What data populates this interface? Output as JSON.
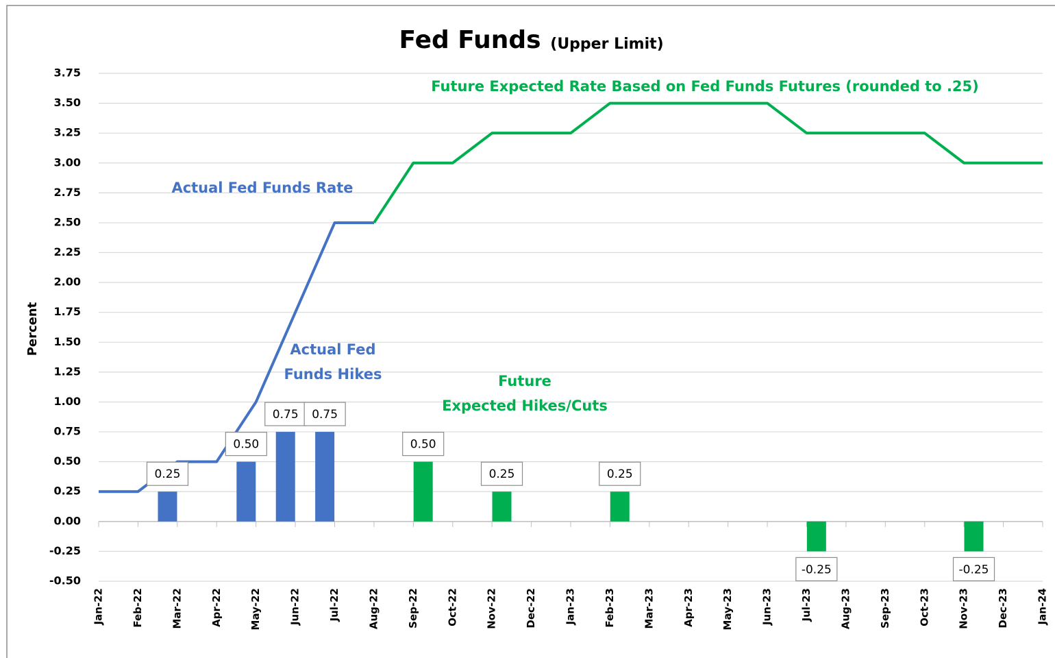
{
  "chart_data": {
    "type": "bar-line",
    "title": "Fed Funds",
    "subtitle": "(Upper Limit)",
    "y_label": "Percent",
    "xlim": [
      0,
      24
    ],
    "xticks": [
      {
        "value": 0,
        "label": "Jan-22"
      },
      {
        "value": 1,
        "label": "Feb-22"
      },
      {
        "value": 2,
        "label": "Mar-22"
      },
      {
        "value": 3,
        "label": "Apr-22"
      },
      {
        "value": 4,
        "label": "May-22"
      },
      {
        "value": 5,
        "label": "Jun-22"
      },
      {
        "value": 6,
        "label": "Jul-22"
      },
      {
        "value": 7,
        "label": "Aug-22"
      },
      {
        "value": 8,
        "label": "Sep-22"
      },
      {
        "value": 9,
        "label": "Oct-22"
      },
      {
        "value": 10,
        "label": "Nov-22"
      },
      {
        "value": 11,
        "label": "Dec-22"
      },
      {
        "value": 12,
        "label": "Jan-23"
      },
      {
        "value": 13,
        "label": "Feb-23"
      },
      {
        "value": 14,
        "label": "Mar-23"
      },
      {
        "value": 15,
        "label": "Apr-23"
      },
      {
        "value": 16,
        "label": "May-23"
      },
      {
        "value": 17,
        "label": "Jun-23"
      },
      {
        "value": 18,
        "label": "Jul-23"
      },
      {
        "value": 19,
        "label": "Aug-23"
      },
      {
        "value": 20,
        "label": "Sep-23"
      },
      {
        "value": 21,
        "label": "Oct-23"
      },
      {
        "value": 22,
        "label": "Nov-23"
      },
      {
        "value": 23,
        "label": "Dec-23"
      },
      {
        "value": 24,
        "label": "Jan-24"
      }
    ],
    "ylim": [
      -0.5,
      3.75
    ],
    "yticks": [
      3.75,
      {
        "value": 3.5,
        "label": "3.50"
      },
      3.25,
      {
        "value": 3,
        "label": "3.00"
      },
      2.75,
      {
        "value": 2.5,
        "label": "2.50"
      },
      2.25,
      {
        "value": 2,
        "label": "2.00"
      },
      1.75,
      {
        "value": 1.5,
        "label": "1.50"
      },
      1.25,
      {
        "value": 1,
        "label": "1.00"
      },
      0.75,
      {
        "value": 0.5,
        "label": "0.50"
      },
      0.25,
      {
        "value": 0,
        "label": "0.00"
      },
      -0.25,
      {
        "value": -0.5,
        "label": "-0.50"
      }
    ],
    "grid": true,
    "series": [
      {
        "kind": "line",
        "color": "#4472c4",
        "x": [
          0,
          1,
          2,
          3,
          4,
          5,
          6,
          7
        ],
        "values": [
          0.25,
          0.25,
          0.5,
          0.5,
          1,
          1.75,
          2.5,
          2.5
        ]
      },
      {
        "kind": "line",
        "color": "#00b050",
        "x": [
          7,
          8,
          9,
          10,
          11,
          12,
          13,
          14,
          15,
          16,
          17,
          18,
          19,
          20,
          21,
          22,
          23,
          24
        ],
        "values": [
          2.5,
          3,
          3,
          3.25,
          3.25,
          3.25,
          3.5,
          3.5,
          3.5,
          3.5,
          3.5,
          3.25,
          3.25,
          3.25,
          3.25,
          3,
          3,
          3
        ]
      },
      {
        "kind": "bar",
        "color": "#4472c4",
        "x": [
          1.75,
          3.75,
          4.75,
          5.75
        ],
        "values": [
          0.25,
          0.5,
          0.75,
          0.75
        ],
        "value_labels": [
          "0.25",
          "0.50",
          "0.75",
          "0.75"
        ]
      },
      {
        "kind": "bar",
        "color": "#00b050",
        "x": [
          8.25,
          10.25,
          13.25,
          18.25,
          22.25
        ],
        "values": [
          0.5,
          0.25,
          0.25,
          -0.25,
          -0.25
        ],
        "value_labels": [
          "0.50",
          "0.25",
          "0.25",
          "-0.25",
          "-0.25"
        ]
      }
    ],
    "annotations": [
      {
        "lines": [
          "Actual Fed Funds Rate"
        ],
        "color": "#4472c4"
      },
      {
        "lines": [
          "Actual Fed",
          "Funds Hikes"
        ],
        "color": "#4472c4"
      },
      {
        "lines": [
          "Future",
          "Expected Hikes/Cuts"
        ],
        "color": "#00b050"
      },
      {
        "lines": [
          "Future Expected Rate Based on Fed Funds Futures (rounded to .25)"
        ],
        "color": "#00b050"
      }
    ]
  }
}
